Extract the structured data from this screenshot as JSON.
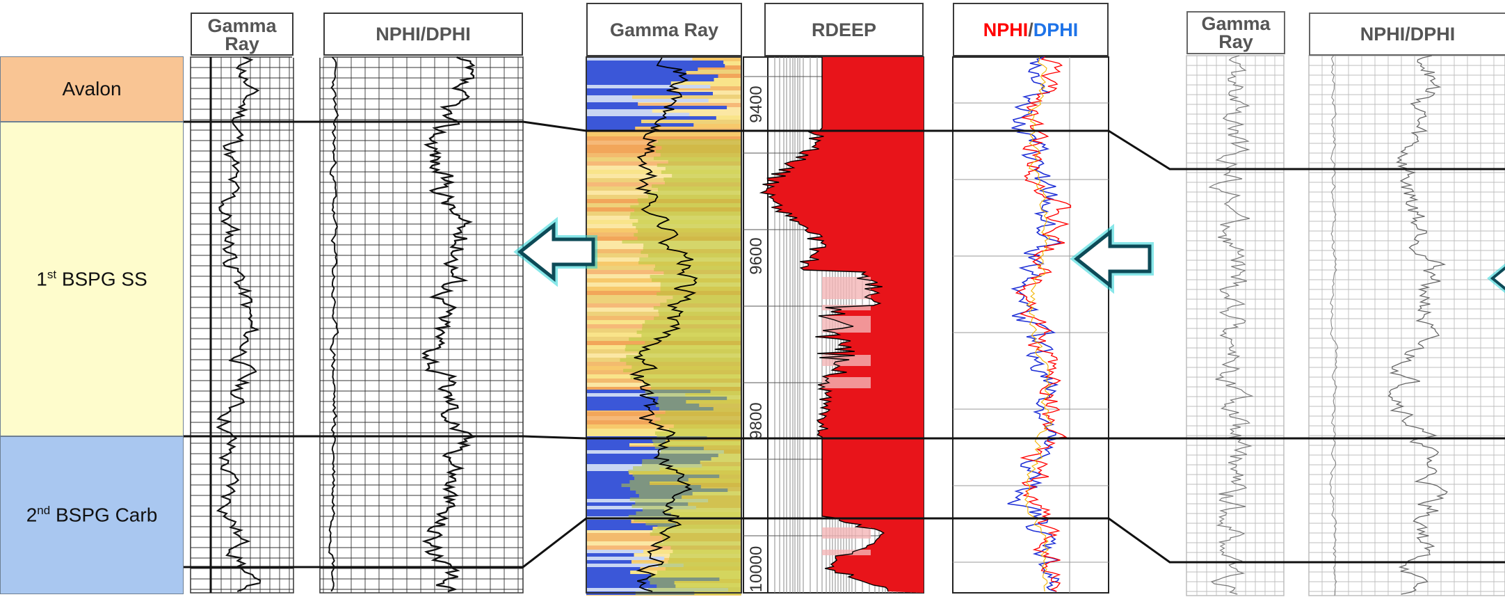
{
  "zones": {
    "avalon": "Avalon",
    "bspg1_pre": "1",
    "bspg1_sup": "st",
    "bspg1_post": " BSPG SS",
    "bspg2_pre": "2",
    "bspg2_sup": "nd",
    "bspg2_post": " BSPG Carb"
  },
  "headers": {
    "left_gamma": "Gamma Ray",
    "left_nphi": "NPHI/DPHI",
    "center_gamma": "Gamma Ray",
    "center_rdeep": "RDEEP",
    "center_nphi_a": "NPHI",
    "center_slash": "/",
    "center_nphi_b": "DPHI",
    "right_gamma": "Gamma Ray",
    "right_nphi": "NPHI/DPHI"
  },
  "depth_labels": [
    "9400",
    "9600",
    "9800",
    "10000"
  ],
  "colors": {
    "avalon_fill": "#f9c594",
    "bspg1_fill": "#fefccc",
    "bspg2_fill": "#a9c7f0",
    "arrow_outline": "#27d4d8",
    "rdeep_fill": "#e8141a",
    "nphi_curve": "#ff0000",
    "dphi_curve": "#1e2fd6"
  }
}
